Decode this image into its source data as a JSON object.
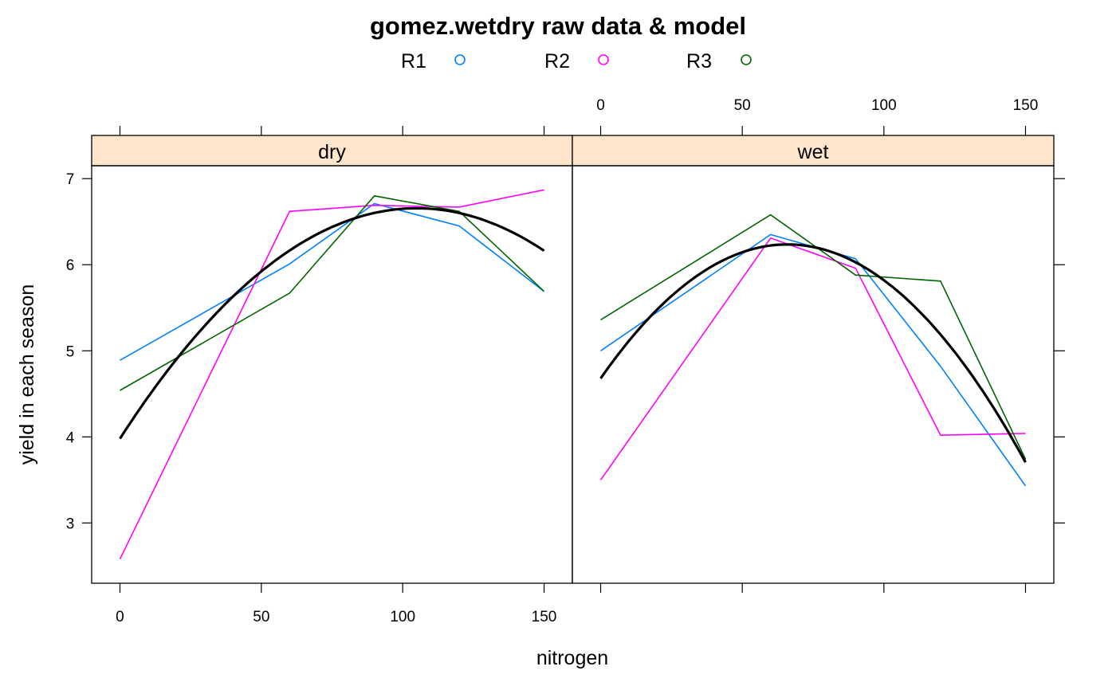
{
  "chart_data": {
    "type": "line",
    "title": "gomez.wetdry raw data & model",
    "xlabel": "nitrogen",
    "ylabel": "yield in each season",
    "xlim": [
      -10,
      160
    ],
    "ylim": [
      2.3,
      7.15
    ],
    "x_ticks": [
      0,
      50,
      100,
      150
    ],
    "y_ticks": [
      3,
      4,
      5,
      6,
      7
    ],
    "grid": false,
    "legend_position": "top",
    "legend": [
      {
        "name": "R1",
        "color": "#0080ff"
      },
      {
        "name": "R2",
        "color": "#ff00ff"
      },
      {
        "name": "R3",
        "color": "#006400"
      }
    ],
    "model_color": "#000000",
    "panels": [
      {
        "strip": "dry",
        "x": [
          0,
          60,
          90,
          120,
          150
        ],
        "series": [
          {
            "name": "R1",
            "values": [
              4.89,
              6.01,
              6.71,
              6.45,
              5.69
            ]
          },
          {
            "name": "R2",
            "values": [
              2.58,
              6.62,
              6.69,
              6.67,
              6.87
            ]
          },
          {
            "name": "R3",
            "values": [
              4.54,
              5.67,
              6.8,
              6.62,
              5.69
            ]
          }
        ],
        "model_coefficients": [
          3.98,
          0.051,
          -0.000243
        ]
      },
      {
        "strip": "wet",
        "x": [
          0,
          60,
          90,
          120,
          150
        ],
        "series": [
          {
            "name": "R1",
            "values": [
              5.0,
              6.35,
              6.07,
              4.82,
              3.43
            ]
          },
          {
            "name": "R2",
            "values": [
              3.5,
              6.31,
              5.96,
              4.02,
              4.04
            ]
          },
          {
            "name": "R3",
            "values": [
              5.36,
              6.58,
              5.88,
              5.81,
              3.74
            ]
          }
        ],
        "model_coefficients": [
          4.68,
          0.0472,
          -0.000358
        ]
      }
    ]
  }
}
